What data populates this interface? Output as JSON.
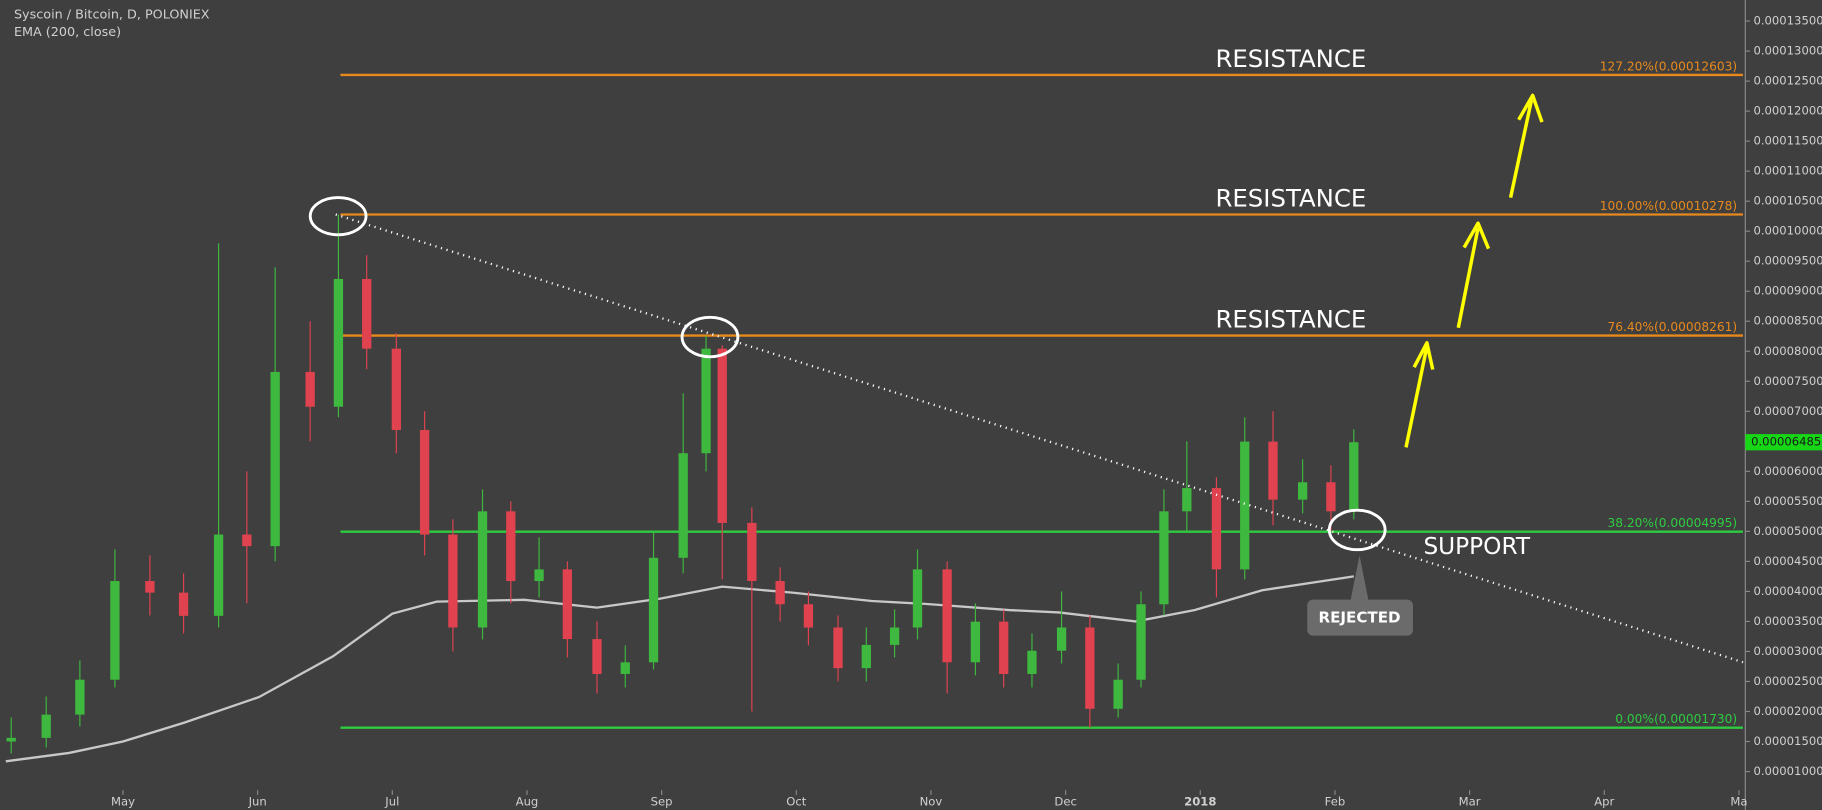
{
  "chart_data": {
    "type": "candlestick",
    "title": "Syscoin / Bitcoin, D, POLONIEX",
    "subtitle": "EMA (200, close)",
    "xlim": [
      -0.87,
      12.03
    ],
    "xticks": [
      {
        "value": 0,
        "label": "May"
      },
      {
        "value": 1,
        "label": "Jun"
      },
      {
        "value": 2,
        "label": "Jul"
      },
      {
        "value": 3,
        "label": "Aug"
      },
      {
        "value": 4,
        "label": "Sep"
      },
      {
        "value": 5,
        "label": "Oct"
      },
      {
        "value": 6,
        "label": "Nov"
      },
      {
        "value": 7,
        "label": "Dec"
      },
      {
        "value": 8,
        "label": "2018"
      },
      {
        "value": 9,
        "label": "Feb"
      },
      {
        "value": 10,
        "label": "Mar"
      },
      {
        "value": 11,
        "label": "Apr"
      },
      {
        "value": 12,
        "label": "Ma"
      }
    ],
    "ylim": [
      3.6e-06,
      0.0001385
    ],
    "yticks": [
      {
        "value": 1e-05,
        "label": "0.00001000"
      },
      {
        "value": 1.5e-05,
        "label": "0.00001500"
      },
      {
        "value": 2e-05,
        "label": "0.00002000"
      },
      {
        "value": 2.5e-05,
        "label": "0.00002500"
      },
      {
        "value": 3e-05,
        "label": "0.00003000"
      },
      {
        "value": 3.5e-05,
        "label": "0.00003500"
      },
      {
        "value": 4e-05,
        "label": "0.00004000"
      },
      {
        "value": 4.5e-05,
        "label": "0.00004500"
      },
      {
        "value": 5e-05,
        "label": "0.00005000"
      },
      {
        "value": 5.5e-05,
        "label": "0.00005500"
      },
      {
        "value": 6e-05,
        "label": "0.00006000"
      },
      {
        "value": 6.5e-05,
        "label": "0.00006500"
      },
      {
        "value": 7e-05,
        "label": "0.00007000"
      },
      {
        "value": 7.5e-05,
        "label": "0.00007500"
      },
      {
        "value": 8e-05,
        "label": "0.00008000"
      },
      {
        "value": 8.5e-05,
        "label": "0.00008500"
      },
      {
        "value": 9e-05,
        "label": "0.00009000"
      },
      {
        "value": 9.5e-05,
        "label": "0.00009500"
      },
      {
        "value": 0.0001,
        "label": "0.00010000"
      },
      {
        "value": 0.000105,
        "label": "0.00010500"
      },
      {
        "value": 0.00011,
        "label": "0.00011000"
      },
      {
        "value": 0.000115,
        "label": "0.00011500"
      },
      {
        "value": 0.00012,
        "label": "0.00012000"
      },
      {
        "value": 0.000125,
        "label": "0.00012500"
      },
      {
        "value": 0.00013,
        "label": "0.00013000"
      },
      {
        "value": 0.000135,
        "label": "0.00013500"
      }
    ],
    "up_color": "#3fb83f",
    "down_color": "#e0434f",
    "x": [
      -0.83,
      -0.57,
      -0.32,
      -0.06,
      0.2,
      0.45,
      0.71,
      0.92,
      1.13,
      1.39,
      1.6,
      1.81,
      2.03,
      2.24,
      2.45,
      2.67,
      2.88,
      3.09,
      3.3,
      3.52,
      3.73,
      3.94,
      4.16,
      4.33,
      4.45,
      4.67,
      4.88,
      5.09,
      5.31,
      5.52,
      5.73,
      5.9,
      6.12,
      6.33,
      6.54,
      6.75,
      6.97,
      7.18,
      7.39,
      7.56,
      7.73,
      7.9,
      8.12,
      8.33,
      8.54,
      8.76,
      8.97,
      9.14
    ],
    "open": [
      1.5e-05,
      1.561e-05,
      1.948e-05,
      2.529e-05,
      4.173e-05,
      3.98e-05,
      3.593e-05,
      4.947e-05,
      4.754e-05,
      7.656e-05,
      7.076e-05,
      9.204e-05,
      8.043e-05,
      6.689e-05,
      4.947e-05,
      3.399e-05,
      5.334e-05,
      4.173e-05,
      4.367e-05,
      3.206e-05,
      2.625e-05,
      2.819e-05,
      4.56e-05,
      6.302e-05,
      8.043e-05,
      5.141e-05,
      4.173e-05,
      3.786e-05,
      3.399e-05,
      2.722e-05,
      3.109e-05,
      3.399e-05,
      4.367e-05,
      2.819e-05,
      3.496e-05,
      2.625e-05,
      3.012e-05,
      3.399e-05,
      2.045e-05,
      2.529e-05,
      3.786e-05,
      5.334e-05,
      5.721e-05,
      4.367e-05,
      6.495e-05,
      5.528e-05,
      5.818e-05,
      5.334e-05
    ],
    "high": [
      1.9e-05,
      2.25e-05,
      2.85e-05,
      4.7e-05,
      4.6e-05,
      4.3e-05,
      9.8e-05,
      6e-05,
      9.4e-05,
      8.5e-05,
      0.00010278,
      9.6e-05,
      8.3e-05,
      7e-05,
      5.2e-05,
      5.7e-05,
      5.5e-05,
      4.9e-05,
      4.5e-05,
      3.5e-05,
      3.1e-05,
      5e-05,
      7.3e-05,
      8.261e-05,
      8.1e-05,
      5.4e-05,
      4.4e-05,
      4e-05,
      3.6e-05,
      3.4e-05,
      3.7e-05,
      4.7e-05,
      4.5e-05,
      3.8e-05,
      3.7e-05,
      3.3e-05,
      4e-05,
      3.6e-05,
      2.8e-05,
      4e-05,
      5.7e-05,
      6.5e-05,
      5.9e-05,
      6.9e-05,
      7e-05,
      6.2e-05,
      6.1e-05,
      6.7e-05
    ],
    "low": [
      1.3e-05,
      1.4e-05,
      1.75e-05,
      2.4e-05,
      3.6e-05,
      3.3e-05,
      3.4e-05,
      3.8e-05,
      4.5e-05,
      6.5e-05,
      6.9e-05,
      7.7e-05,
      6.3e-05,
      4.6e-05,
      3e-05,
      3.2e-05,
      3.8e-05,
      3.9e-05,
      2.9e-05,
      2.3e-05,
      2.4e-05,
      2.7e-05,
      4.3e-05,
      6e-05,
      4.2e-05,
      2e-05,
      3.5e-05,
      3.1e-05,
      2.5e-05,
      2.5e-05,
      2.9e-05,
      3.2e-05,
      2.3e-05,
      2.6e-05,
      2.4e-05,
      2.4e-05,
      2.8e-05,
      1.73e-05,
      1.9e-05,
      2.4e-05,
      3.6e-05,
      5e-05,
      3.9e-05,
      4.2e-05,
      5.1e-05,
      5.3e-05,
      5e-05,
      5.2e-05
    ],
    "close": [
      1.561e-05,
      1.948e-05,
      2.529e-05,
      4.173e-05,
      3.98e-05,
      3.593e-05,
      4.947e-05,
      4.754e-05,
      7.656e-05,
      7.076e-05,
      9.204e-05,
      8.043e-05,
      6.689e-05,
      4.947e-05,
      3.399e-05,
      5.334e-05,
      4.173e-05,
      4.367e-05,
      3.206e-05,
      2.625e-05,
      2.819e-05,
      4.56e-05,
      6.302e-05,
      8.043e-05,
      5.141e-05,
      4.173e-05,
      3.786e-05,
      3.399e-05,
      2.722e-05,
      3.109e-05,
      3.399e-05,
      4.367e-05,
      2.819e-05,
      3.496e-05,
      2.625e-05,
      3.012e-05,
      3.399e-05,
      2.045e-05,
      2.529e-05,
      3.786e-05,
      5.334e-05,
      5.721e-05,
      4.367e-05,
      6.495e-05,
      5.528e-05,
      5.818e-05,
      5.334e-05,
      6.485e-05
    ],
    "ema": {
      "color": "#c8c8c8",
      "x": [
        -0.87,
        -0.4,
        0,
        0.45,
        1.01,
        1.56,
        2.0,
        2.33,
        2.98,
        3.52,
        3.99,
        4.45,
        4.97,
        5.56,
        5.97,
        6.58,
        6.95,
        7.52,
        7.96,
        8.46,
        9.14
      ],
      "values": [
        1.17e-05,
        1.31e-05,
        1.5e-05,
        1.81e-05,
        2.24e-05,
        2.92e-05,
        3.63e-05,
        3.83e-05,
        3.86e-05,
        3.73e-05,
        3.88e-05,
        4.08e-05,
        3.98e-05,
        3.84e-05,
        3.79e-05,
        3.69e-05,
        3.65e-05,
        3.5e-05,
        3.69e-05,
        4.02e-05,
        4.25e-05
      ]
    },
    "fib_levels": [
      {
        "label": "127.20%(0.00012603)",
        "value": 0.00012603,
        "color": "#e8891c"
      },
      {
        "label": "100.00%(0.00010278)",
        "value": 0.00010278,
        "color": "#e8891c"
      },
      {
        "label": "76.40%(0.00008261)",
        "value": 8.261e-05,
        "color": "#e8891c"
      },
      {
        "label": "38.20%(0.00004995)",
        "value": 4.995e-05,
        "color": "#2ecc40"
      },
      {
        "label": "0.00%(0.00001730)",
        "value": 1.73e-05,
        "color": "#2ecc40"
      }
    ],
    "trendline": {
      "x": [
        1.58,
        12.03
      ],
      "values": [
        0.00010278,
        2.82e-05
      ]
    },
    "last_price": {
      "value": 6.485e-05,
      "label": "0.00006485",
      "color": "#16d616"
    },
    "annotations": [
      "RESISTANCE",
      "RESISTANCE",
      "RESISTANCE",
      "SUPPORT",
      "REJECTED"
    ]
  }
}
